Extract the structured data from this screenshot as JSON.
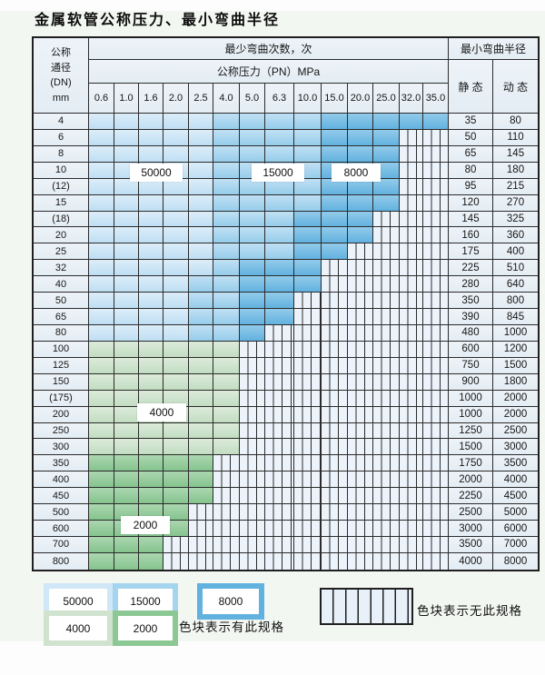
{
  "title": "金属软管公称压力、最小弯曲半径",
  "table": {
    "header": {
      "dn_lines": [
        "公称",
        "通径",
        "(DN)",
        "mm"
      ],
      "bend_times": "最少弯曲次数，次",
      "min_radius": "最小弯曲半径",
      "pressure": "公称压力（PN）MPa",
      "pressure_ticks": [
        "0.6",
        "1.0",
        "1.6",
        "2.0",
        "2.5",
        "4.0",
        "5.0",
        "6.3",
        "10.0",
        "15.0",
        "20.0",
        "25.0",
        "32.0",
        "35.0"
      ],
      "static": "静 态",
      "dynamic": "动 态"
    },
    "rows": [
      {
        "dn": "4",
        "zones": [
          [
            "50000",
            5
          ],
          [
            "15000",
            4
          ],
          [
            "8000",
            5
          ]
        ],
        "static": "35",
        "dynamic": "80"
      },
      {
        "dn": "6",
        "zones": [
          [
            "50000",
            5
          ],
          [
            "15000",
            4
          ],
          [
            "8000",
            3
          ]
        ],
        "static": "50",
        "dynamic": "110"
      },
      {
        "dn": "8",
        "zones": [
          [
            "50000",
            5
          ],
          [
            "15000",
            4
          ],
          [
            "8000",
            3
          ]
        ],
        "static": "65",
        "dynamic": "145"
      },
      {
        "dn": "10",
        "zones": [
          [
            "50000",
            5
          ],
          [
            "15000",
            4
          ],
          [
            "8000",
            3
          ]
        ],
        "static": "80",
        "dynamic": "180"
      },
      {
        "dn": "(12)",
        "zones": [
          [
            "50000",
            5
          ],
          [
            "15000",
            4
          ],
          [
            "8000",
            3
          ]
        ],
        "static": "95",
        "dynamic": "215"
      },
      {
        "dn": "15",
        "zones": [
          [
            "50000",
            5
          ],
          [
            "15000",
            4
          ],
          [
            "8000",
            3
          ]
        ],
        "static": "120",
        "dynamic": "270"
      },
      {
        "dn": "(18)",
        "zones": [
          [
            "50000",
            5
          ],
          [
            "15000",
            3
          ],
          [
            "8000",
            3
          ]
        ],
        "static": "145",
        "dynamic": "325"
      },
      {
        "dn": "20",
        "zones": [
          [
            "50000",
            5
          ],
          [
            "15000",
            3
          ],
          [
            "8000",
            3
          ]
        ],
        "static": "160",
        "dynamic": "360"
      },
      {
        "dn": "25",
        "zones": [
          [
            "50000",
            5
          ],
          [
            "15000",
            3
          ],
          [
            "8000",
            2
          ]
        ],
        "static": "175",
        "dynamic": "400"
      },
      {
        "dn": "32",
        "zones": [
          [
            "50000",
            5
          ],
          [
            "15000",
            1
          ],
          [
            "8000",
            3
          ]
        ],
        "static": "225",
        "dynamic": "510"
      },
      {
        "dn": "40",
        "zones": [
          [
            "50000",
            4
          ],
          [
            "15000",
            2
          ],
          [
            "8000",
            3
          ]
        ],
        "static": "280",
        "dynamic": "640"
      },
      {
        "dn": "50",
        "zones": [
          [
            "50000",
            4
          ],
          [
            "15000",
            2
          ],
          [
            "8000",
            2
          ]
        ],
        "static": "350",
        "dynamic": "800"
      },
      {
        "dn": "65",
        "zones": [
          [
            "50000",
            4
          ],
          [
            "15000",
            2
          ],
          [
            "8000",
            2
          ]
        ],
        "static": "390",
        "dynamic": "845"
      },
      {
        "dn": "80",
        "zones": [
          [
            "50000",
            4
          ],
          [
            "15000",
            2
          ],
          [
            "8000",
            1
          ]
        ],
        "static": "480",
        "dynamic": "1000"
      },
      {
        "dn": "100",
        "zones": [
          [
            "4000",
            6
          ]
        ],
        "static": "600",
        "dynamic": "1200"
      },
      {
        "dn": "125",
        "zones": [
          [
            "4000",
            6
          ]
        ],
        "static": "750",
        "dynamic": "1500"
      },
      {
        "dn": "150",
        "zones": [
          [
            "4000",
            6
          ]
        ],
        "static": "900",
        "dynamic": "1800"
      },
      {
        "dn": "(175)",
        "zones": [
          [
            "4000",
            6
          ]
        ],
        "static": "1000",
        "dynamic": "2000"
      },
      {
        "dn": "200",
        "zones": [
          [
            "4000",
            6
          ]
        ],
        "static": "1000",
        "dynamic": "2000"
      },
      {
        "dn": "250",
        "zones": [
          [
            "4000",
            6
          ]
        ],
        "static": "1250",
        "dynamic": "2500"
      },
      {
        "dn": "300",
        "zones": [
          [
            "4000",
            6
          ]
        ],
        "static": "1500",
        "dynamic": "3000"
      },
      {
        "dn": "350",
        "zones": [
          [
            "2000",
            5
          ]
        ],
        "static": "1750",
        "dynamic": "3500"
      },
      {
        "dn": "400",
        "zones": [
          [
            "2000",
            5
          ]
        ],
        "static": "2000",
        "dynamic": "4000"
      },
      {
        "dn": "450",
        "zones": [
          [
            "2000",
            5
          ]
        ],
        "static": "2250",
        "dynamic": "4500"
      },
      {
        "dn": "500",
        "zones": [
          [
            "2000",
            4
          ]
        ],
        "static": "2500",
        "dynamic": "5000"
      },
      {
        "dn": "600",
        "zones": [
          [
            "2000",
            4
          ]
        ],
        "static": "3000",
        "dynamic": "6000"
      },
      {
        "dn": "700",
        "zones": [
          [
            "2000",
            3
          ]
        ],
        "static": "3500",
        "dynamic": "7000"
      },
      {
        "dn": "800",
        "zones": [
          [
            "2000",
            3
          ]
        ],
        "static": "4000",
        "dynamic": "8000"
      }
    ],
    "zone_labels": [
      "50000",
      "15000",
      "8000",
      "4000",
      "2000"
    ]
  },
  "legend": {
    "swatches": [
      {
        "label": "50000",
        "color": "#cfe7f7"
      },
      {
        "label": "15000",
        "color": "#a5d4ef"
      },
      {
        "label": "8000",
        "color": "#62b2e0"
      },
      {
        "label": "4000",
        "color": "#cfe3cf"
      },
      {
        "label": "2000",
        "color": "#8cc893"
      }
    ],
    "has_spec_note": "色块表示有此规格",
    "no_spec_note": "色块表示无此规格"
  },
  "colors": {
    "zone_50000": "#cfe7f7",
    "zone_15000": "#a5d4ef",
    "zone_8000": "#62b2e0",
    "zone_4000": "#cfe3cf",
    "zone_2000": "#8cc893",
    "no_spec_bg": "#ecf3fa",
    "grid_line": "#2b2b2b"
  }
}
